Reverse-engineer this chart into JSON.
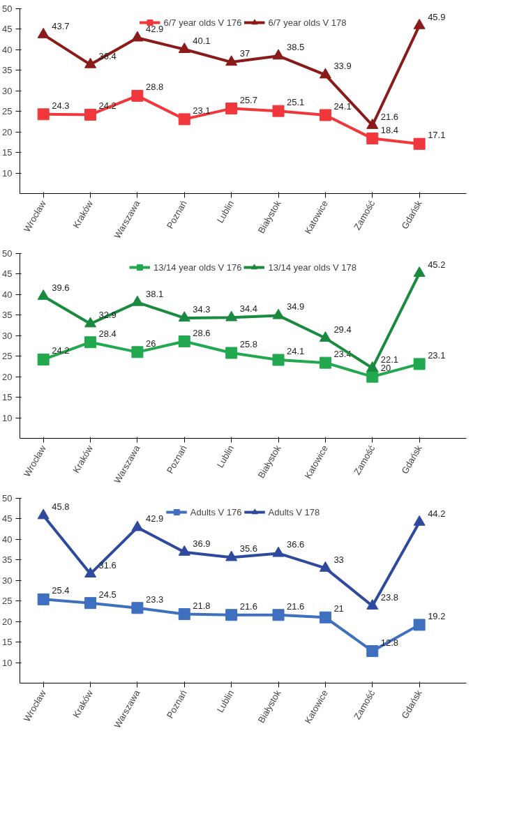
{
  "chart_data": [
    {
      "type": "line",
      "categories": [
        "Wrocław",
        "Kraków",
        "Warszawa",
        "Poznań",
        "Lublin",
        "Białystok",
        "Katowice",
        "Zamość",
        "Gdańsk"
      ],
      "ylim": [
        5,
        50
      ],
      "yticks": [
        10,
        15,
        20,
        25,
        30,
        35,
        40,
        45,
        50
      ],
      "grid": false,
      "legend": "top",
      "data_labels": true,
      "series": [
        {
          "name": "6/7 year olds V 176",
          "color": "#f0373c",
          "marker": "square",
          "values": [
            24.3,
            24.2,
            28.8,
            23.1,
            25.7,
            25.1,
            24.1,
            18.4,
            17.1
          ]
        },
        {
          "name": "6/7 year olds V 178",
          "color": "#8b1a1a",
          "marker": "triangle",
          "values": [
            43.7,
            36.4,
            42.9,
            40.1,
            37,
            38.5,
            33.9,
            21.6,
            45.9
          ]
        }
      ]
    },
    {
      "type": "line",
      "categories": [
        "Wrocław",
        "Kraków",
        "Warszawa",
        "Poznań",
        "Lublin",
        "Białystok",
        "Katowice",
        "Zamość",
        "Gdańsk"
      ],
      "ylim": [
        5,
        50
      ],
      "yticks": [
        10,
        15,
        20,
        25,
        30,
        35,
        40,
        45,
        50
      ],
      "grid": false,
      "legend": "top",
      "data_labels": true,
      "series": [
        {
          "name": "13/14 year olds V 176",
          "color": "#22a84f",
          "marker": "square",
          "values": [
            24.2,
            28.4,
            26,
            28.6,
            25.8,
            24.1,
            23.4,
            20,
            23.1
          ]
        },
        {
          "name": "13/14 year olds V 178",
          "color": "#1a8a3e",
          "marker": "triangle",
          "values": [
            39.6,
            32.9,
            38.1,
            34.3,
            34.4,
            34.9,
            29.4,
            22.1,
            45.2
          ]
        }
      ]
    },
    {
      "type": "line",
      "categories": [
        "Wrocław",
        "Kraków",
        "Warszawa",
        "Poznań",
        "Lublin",
        "Białystok",
        "Katowice",
        "Zamość",
        "Gdańsk"
      ],
      "ylim": [
        5,
        50
      ],
      "yticks": [
        10,
        15,
        20,
        25,
        30,
        35,
        40,
        45,
        50
      ],
      "grid": false,
      "legend": "top",
      "data_labels": true,
      "series": [
        {
          "name": "Adults V 176",
          "color": "#3f6fbf",
          "marker": "square",
          "values": [
            25.4,
            24.5,
            23.3,
            21.8,
            21.6,
            21.6,
            21,
            12.8,
            19.2
          ]
        },
        {
          "name": "Adults V 178",
          "color": "#2e4a9e",
          "marker": "triangle",
          "values": [
            45.8,
            31.6,
            42.9,
            36.9,
            35.6,
            36.6,
            33,
            23.8,
            44.2
          ]
        }
      ]
    }
  ]
}
